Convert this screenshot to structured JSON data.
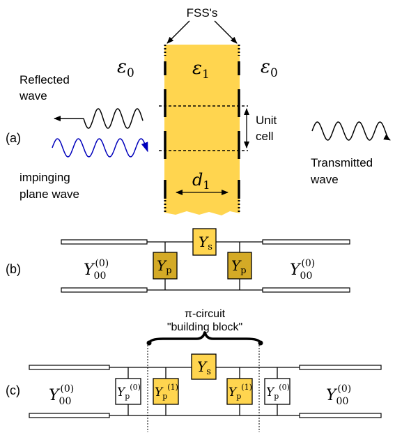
{
  "colors": {
    "slab": "#ffd54f",
    "shunt_dark": "#d4aa26",
    "shunt_light": "#ffd54f",
    "series": "#ffd54f",
    "impinging_wave": "#0000bb",
    "line": "#000000"
  },
  "panel_a": {
    "label": "(a)",
    "fss_label": "FSS's",
    "eps_left": {
      "sym": "ε",
      "sub": "0"
    },
    "eps_mid": {
      "sym": "ε",
      "sub": "1"
    },
    "eps_right": {
      "sym": "ε",
      "sub": "0"
    },
    "reflected": [
      "Reflected",
      "wave"
    ],
    "impinging": [
      "impinging",
      "plane wave"
    ],
    "transmitted": [
      "Transmitted",
      "wave"
    ],
    "unit_cell": [
      "Unit",
      "cell"
    ],
    "thickness": {
      "sym": "d",
      "sub": "1"
    }
  },
  "panel_b": {
    "label": "(b)",
    "y_left": {
      "sym": "Y",
      "sub": "00",
      "sup": "(0)"
    },
    "y_right": {
      "sym": "Y",
      "sub": "00",
      "sup": "(0)"
    },
    "ys": {
      "sym": "Y",
      "sub": "s"
    },
    "yp_left": {
      "sym": "Y",
      "sub": "p"
    },
    "yp_right": {
      "sym": "Y",
      "sub": "p"
    }
  },
  "panel_c": {
    "label": "(c)",
    "pi_label": "π-circuit",
    "block_label": "\"building block\"",
    "y_left": {
      "sym": "Y",
      "sub": "00",
      "sup": "(0)"
    },
    "y_right": {
      "sym": "Y",
      "sub": "00",
      "sup": "(0)"
    },
    "ys": {
      "sym": "Y",
      "sub": "s"
    },
    "yp_outer_left": {
      "sym": "Y",
      "sub": "p",
      "sup": "(0)"
    },
    "yp_inner_left": {
      "sym": "Y",
      "sub": "p",
      "sup": "(1)"
    },
    "yp_inner_right": {
      "sym": "Y",
      "sub": "p",
      "sup": "(1)"
    },
    "yp_outer_right": {
      "sym": "Y",
      "sub": "p",
      "sup": "(0)"
    }
  }
}
